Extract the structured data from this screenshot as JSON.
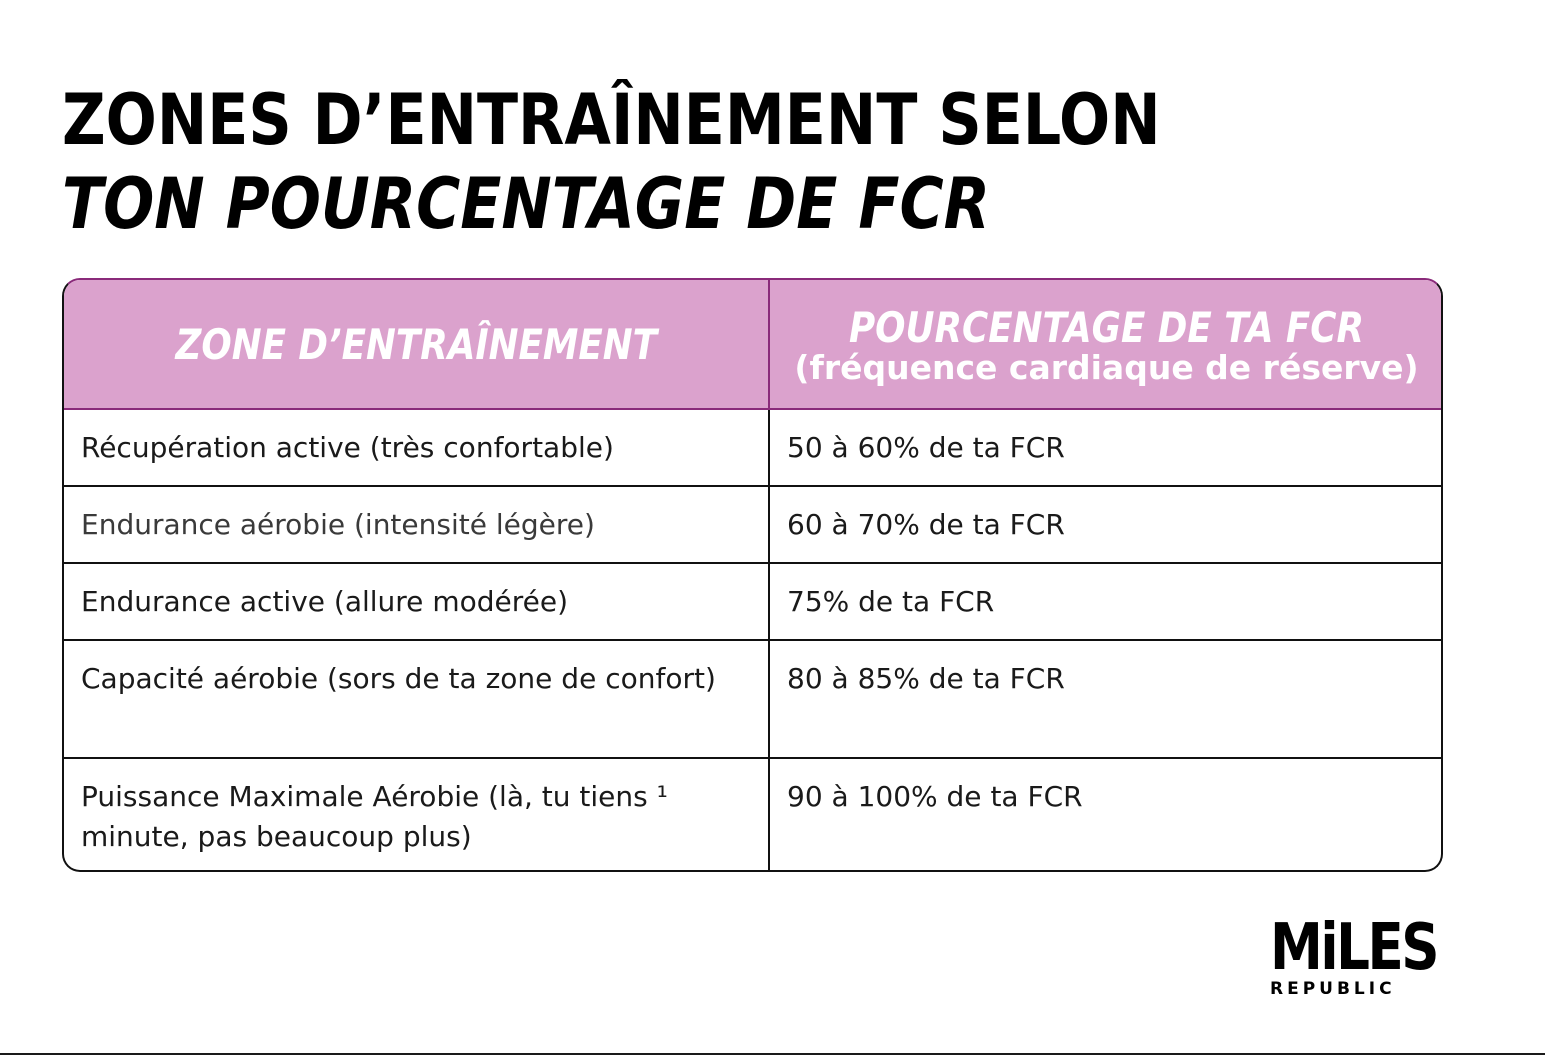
{
  "title": {
    "line1": "ZONES D’ENTRAÎNEMENT SELON",
    "line2": "TON POURCENTAGE DE FCR"
  },
  "table": {
    "headers": [
      {
        "main": "ZONE D’ENTRAÎNEMENT",
        "sub": ""
      },
      {
        "main": "POURCENTAGE DE TA FCR",
        "sub": "(fréquence cardiaque de réserve)"
      }
    ],
    "rows": [
      {
        "zone": "Récupération active (très confortable)",
        "percent": "50 à 60% de ta FCR"
      },
      {
        "zone": "Endurance aérobie (intensité légère)",
        "percent": "60 à 70% de ta FCR"
      },
      {
        "zone": "Endurance active (allure modérée)",
        "percent": "75% de ta FCR"
      },
      {
        "zone": "Capacité aérobie (sors de ta zone de confort)",
        "percent": "80 à 85% de ta FCR"
      },
      {
        "zone": "Puissance Maximale Aérobie (là, tu tiens ¹ minute, pas beaucoup plus)",
        "percent": "90 à 100% de ta FCR"
      }
    ]
  },
  "logo": {
    "main": "MiLES",
    "sub": "REPUBLIC"
  },
  "colors": {
    "header_bg": "#dba2cd",
    "header_border": "#8a2a7a",
    "header_text": "#ffffff",
    "text": "#1a1a1a"
  }
}
